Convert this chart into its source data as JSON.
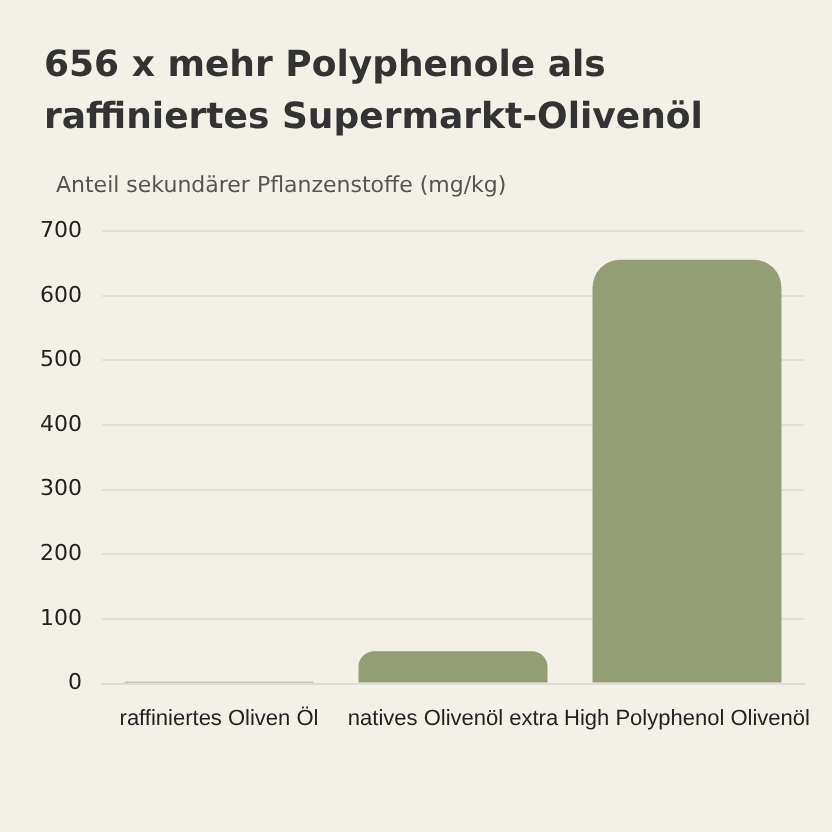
{
  "chart_data": {
    "type": "bar",
    "title": "656 x mehr Polyphenole als raffiniertes Supermarkt-Olivenöl",
    "ylabel": "Anteil sekundärer Pflanzenstoffe (mg/kg)",
    "categories": [
      "raffiniertes Oliven Öl",
      "natives Olivenöl extra",
      "High Polyphenol Olivenöl"
    ],
    "values": [
      3,
      50,
      656
    ],
    "color": "#939e74",
    "ylim": [
      0,
      700
    ],
    "yticks": [
      0,
      100,
      200,
      300,
      400,
      500,
      600,
      700
    ],
    "grid": "y",
    "legend": false
  }
}
